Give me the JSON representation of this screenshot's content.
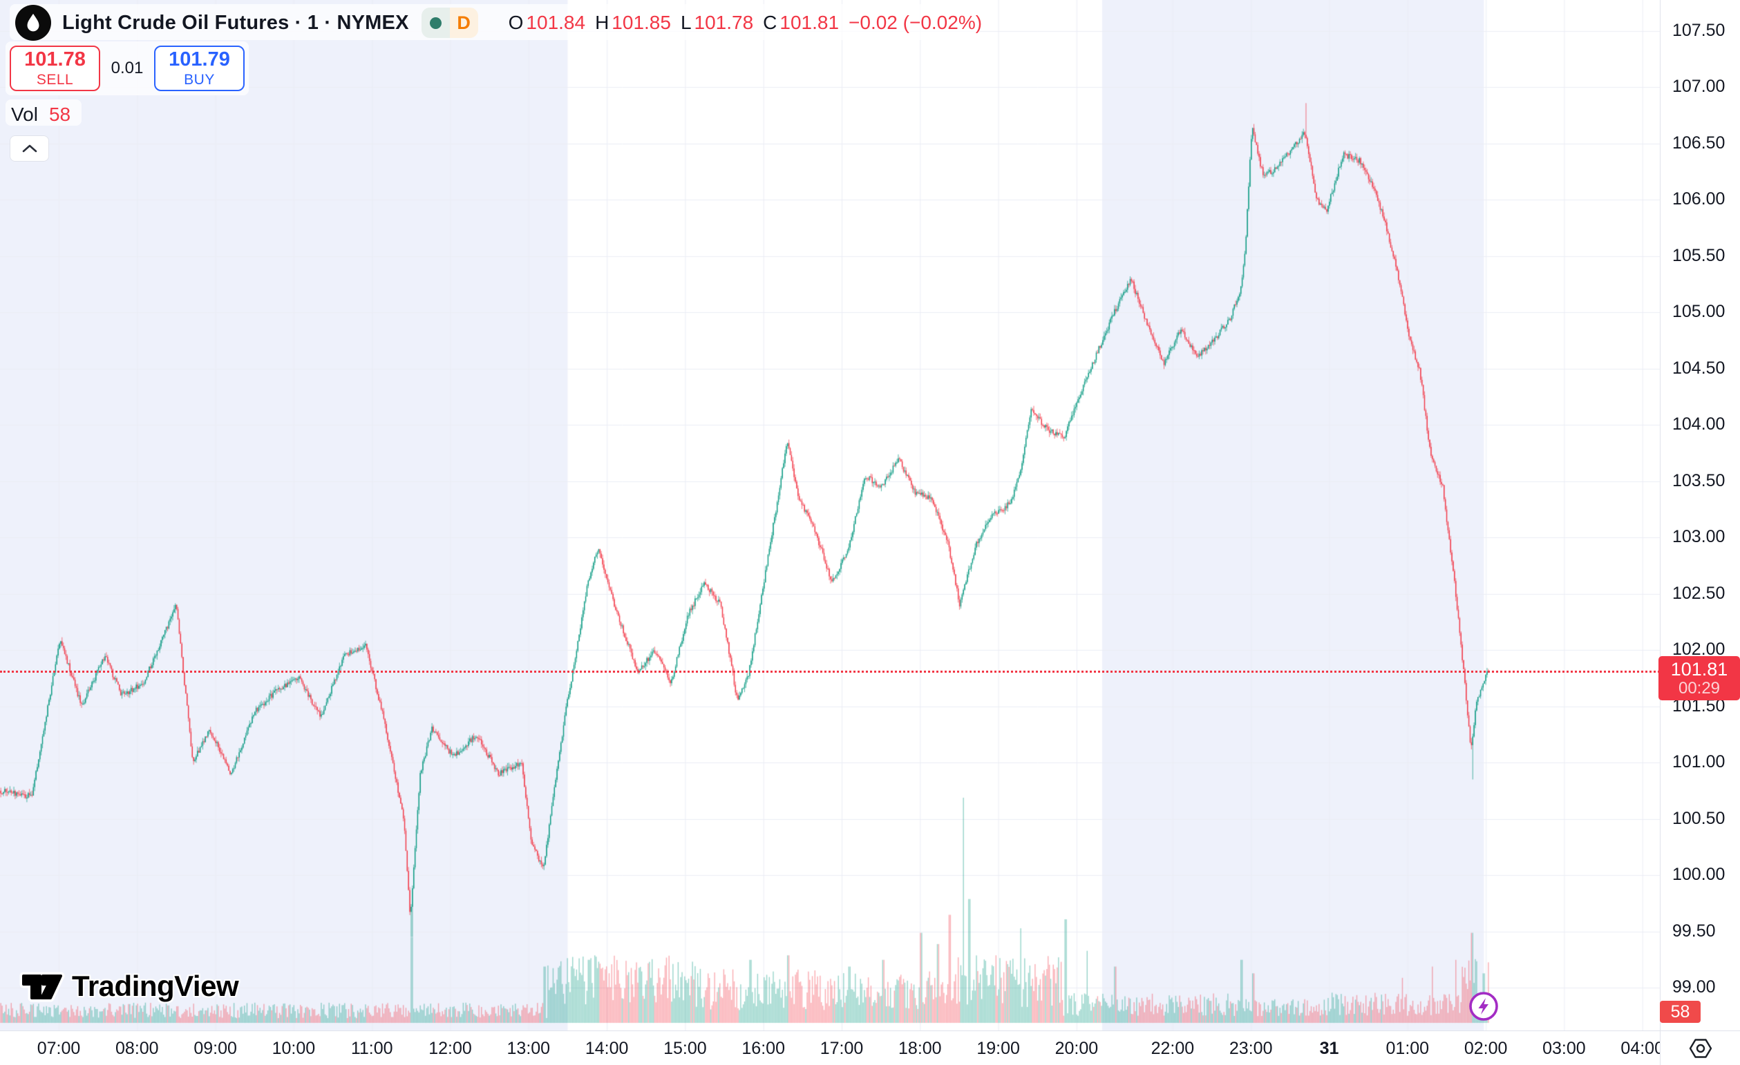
{
  "header": {
    "title": "Light Crude Oil Futures · 1 · NYMEX",
    "resolution_badge": "D",
    "market_status": "open",
    "ohlc": {
      "o_label": "O",
      "o": "101.84",
      "h_label": "H",
      "h": "101.85",
      "l_label": "L",
      "l": "101.78",
      "c_label": "C",
      "c": "101.81",
      "change": "−0.02 (−0.02%)"
    }
  },
  "trade_panel": {
    "sell_price": "101.78",
    "sell_label": "SELL",
    "spread": "0.01",
    "buy_price": "101.79",
    "buy_label": "BUY"
  },
  "volume_legend": {
    "label": "Vol",
    "value": "58"
  },
  "price_axis": {
    "ticks": [
      "107.50",
      "107.00",
      "106.50",
      "106.00",
      "105.50",
      "105.00",
      "104.50",
      "104.00",
      "103.50",
      "103.00",
      "102.50",
      "102.00",
      "101.50",
      "101.00",
      "100.50",
      "100.00",
      "99.50",
      "99.00"
    ],
    "last_price": "101.81",
    "countdown": "00:29",
    "volume_badge": "58"
  },
  "time_axis": {
    "ticks": [
      {
        "label": "07:00"
      },
      {
        "label": "08:00"
      },
      {
        "label": "09:00"
      },
      {
        "label": "10:00"
      },
      {
        "label": "11:00"
      },
      {
        "label": "12:00"
      },
      {
        "label": "13:00"
      },
      {
        "label": "14:00"
      },
      {
        "label": "15:00"
      },
      {
        "label": "16:00"
      },
      {
        "label": "17:00"
      },
      {
        "label": "18:00"
      },
      {
        "label": "19:00"
      },
      {
        "label": "20:00"
      },
      {
        "label": "22:00",
        "wide_gap_before": true
      },
      {
        "label": "23:00"
      },
      {
        "label": "31",
        "bold": true
      },
      {
        "label": "01:00"
      },
      {
        "label": "02:00"
      },
      {
        "label": "03:00"
      },
      {
        "label": "04:00"
      }
    ]
  },
  "watermark": {
    "text": "TradingView"
  },
  "chart_data": {
    "type": "candlestick",
    "symbol": "Light Crude Oil Futures (NYMEX)",
    "interval_minutes": 1,
    "price_tick_step": 0.5,
    "visible_price_range": [
      98.85,
      107.8
    ],
    "last": {
      "price": 101.81,
      "time": "02:04",
      "countdown": "00:29",
      "volume": 58
    },
    "colors": {
      "up": "#089981",
      "down": "#f23645",
      "vol_up": "rgba(8,153,129,0.42)",
      "vol_down": "rgba(242,54,69,0.42)",
      "grid": "#ebedf5",
      "session_band": "#eef1fb",
      "last_line": "#f23645",
      "buy_blue": "#2962ff",
      "flash_purple": "#a32cc4",
      "badge_orange": "#f57c00",
      "status_green": "#2f7d6b"
    },
    "sessions": [
      {
        "from_xf": 0.0,
        "to_xf": 0.342
      },
      {
        "from_xf": 0.664,
        "to_xf": 0.894
      }
    ],
    "price_path": [
      {
        "t": "06:15",
        "p": 100.75,
        "xf": 0.0
      },
      {
        "t": "06:40",
        "p": 100.7,
        "xf": 0.02
      },
      {
        "t": "07:02",
        "p": 102.1,
        "xf": 0.037
      },
      {
        "t": "07:19",
        "p": 101.5,
        "xf": 0.05
      },
      {
        "t": "07:36",
        "p": 101.95,
        "xf": 0.064
      },
      {
        "t": "07:49",
        "p": 101.6,
        "xf": 0.074
      },
      {
        "t": "08:06",
        "p": 101.7,
        "xf": 0.087
      },
      {
        "t": "08:31",
        "p": 102.4,
        "xf": 0.107
      },
      {
        "t": "08:44",
        "p": 101.0,
        "xf": 0.117
      },
      {
        "t": "08:57",
        "p": 101.3,
        "xf": 0.127
      },
      {
        "t": "09:14",
        "p": 100.9,
        "xf": 0.14
      },
      {
        "t": "09:31",
        "p": 101.45,
        "xf": 0.154
      },
      {
        "t": "09:48",
        "p": 101.65,
        "xf": 0.168
      },
      {
        "t": "10:05",
        "p": 101.75,
        "xf": 0.181
      },
      {
        "t": "10:22",
        "p": 101.4,
        "xf": 0.194
      },
      {
        "t": "10:39",
        "p": 101.95,
        "xf": 0.208
      },
      {
        "t": "10:56",
        "p": 102.05,
        "xf": 0.221
      },
      {
        "t": "11:09",
        "p": 101.45,
        "xf": 0.231
      },
      {
        "t": "11:26",
        "p": 100.5,
        "xf": 0.244
      },
      {
        "t": "11:30",
        "p": 99.6,
        "xf": 0.248
      },
      {
        "t": "11:38",
        "p": 100.9,
        "xf": 0.254
      },
      {
        "t": "11:47",
        "p": 101.3,
        "xf": 0.261
      },
      {
        "t": "12:04",
        "p": 101.05,
        "xf": 0.274
      },
      {
        "t": "12:22",
        "p": 101.25,
        "xf": 0.288
      },
      {
        "t": "12:39",
        "p": 100.9,
        "xf": 0.301
      },
      {
        "t": "12:56",
        "p": 101.0,
        "xf": 0.315
      },
      {
        "t": "13:04",
        "p": 100.3,
        "xf": 0.321
      },
      {
        "t": "13:13",
        "p": 100.05,
        "xf": 0.328
      },
      {
        "t": "13:30",
        "p": 101.4,
        "xf": 0.341
      },
      {
        "t": "13:47",
        "p": 102.6,
        "xf": 0.355
      },
      {
        "t": "13:55",
        "p": 102.9,
        "xf": 0.361
      },
      {
        "t": "14:08",
        "p": 102.4,
        "xf": 0.371
      },
      {
        "t": "14:25",
        "p": 101.8,
        "xf": 0.385
      },
      {
        "t": "14:38",
        "p": 102.0,
        "xf": 0.395
      },
      {
        "t": "14:51",
        "p": 101.7,
        "xf": 0.405
      },
      {
        "t": "15:04",
        "p": 102.3,
        "xf": 0.415
      },
      {
        "t": "15:16",
        "p": 102.6,
        "xf": 0.425
      },
      {
        "t": "15:29",
        "p": 102.4,
        "xf": 0.435
      },
      {
        "t": "15:42",
        "p": 101.55,
        "xf": 0.445
      },
      {
        "t": "15:50",
        "p": 101.8,
        "xf": 0.452
      },
      {
        "t": "16:15",
        "p": 103.85,
        "xf": 0.475
      },
      {
        "t": "16:23",
        "p": 103.35,
        "xf": 0.482
      },
      {
        "t": "16:36",
        "p": 103.05,
        "xf": 0.492
      },
      {
        "t": "16:49",
        "p": 102.6,
        "xf": 0.502
      },
      {
        "t": "17:02",
        "p": 102.9,
        "xf": 0.512
      },
      {
        "t": "17:15",
        "p": 103.55,
        "xf": 0.522
      },
      {
        "t": "17:28",
        "p": 103.45,
        "xf": 0.532
      },
      {
        "t": "17:40",
        "p": 103.7,
        "xf": 0.542
      },
      {
        "t": "17:53",
        "p": 103.4,
        "xf": 0.552
      },
      {
        "t": "18:06",
        "p": 103.35,
        "xf": 0.562
      },
      {
        "t": "18:19",
        "p": 102.95,
        "xf": 0.572
      },
      {
        "t": "18:27",
        "p": 102.4,
        "xf": 0.579
      },
      {
        "t": "18:40",
        "p": 102.95,
        "xf": 0.589
      },
      {
        "t": "18:53",
        "p": 103.2,
        "xf": 0.599
      },
      {
        "t": "19:06",
        "p": 103.3,
        "xf": 0.609
      },
      {
        "t": "19:14",
        "p": 103.55,
        "xf": 0.615
      },
      {
        "t": "19:23",
        "p": 104.15,
        "xf": 0.622
      },
      {
        "t": "19:36",
        "p": 103.95,
        "xf": 0.632
      },
      {
        "t": "19:49",
        "p": 103.9,
        "xf": 0.642
      },
      {
        "t": "20:10",
        "p": 104.3,
        "xf": 0.652
      },
      {
        "t": "20:31",
        "p": 104.65,
        "xf": 0.662
      },
      {
        "t": "20:52",
        "p": 105.0,
        "xf": 0.672
      },
      {
        "t": "21:13",
        "p": 105.3,
        "xf": 0.682
      },
      {
        "t": "21:33",
        "p": 104.9,
        "xf": 0.692
      },
      {
        "t": "21:54",
        "p": 104.55,
        "xf": 0.702
      },
      {
        "t": "22:09",
        "p": 104.85,
        "xf": 0.712
      },
      {
        "t": "22:22",
        "p": 104.6,
        "xf": 0.722
      },
      {
        "t": "22:35",
        "p": 104.75,
        "xf": 0.732
      },
      {
        "t": "22:47",
        "p": 104.95,
        "xf": 0.742
      },
      {
        "t": "23:00",
        "p": 105.2,
        "xf": 0.748
      },
      {
        "t": "23:02",
        "p": 105.55,
        "xf": 0.751
      },
      {
        "t": "23:05",
        "p": 106.65,
        "xf": 0.755
      },
      {
        "t": "23:13",
        "p": 106.2,
        "xf": 0.762
      },
      {
        "t": "23:23",
        "p": 106.3,
        "xf": 0.771
      },
      {
        "t": "23:34",
        "p": 106.45,
        "xf": 0.779
      },
      {
        "t": "23:45",
        "p": 106.6,
        "xf": 0.787
      },
      {
        "t": "23:52",
        "p": 106.0,
        "xf": 0.794
      },
      {
        "t": "00:00",
        "p": 105.9,
        "xf": 0.8
      },
      {
        "t": "00:13",
        "p": 106.4,
        "xf": 0.81
      },
      {
        "t": "00:26",
        "p": 106.35,
        "xf": 0.82
      },
      {
        "t": "00:37",
        "p": 106.1,
        "xf": 0.829
      },
      {
        "t": "00:47",
        "p": 105.7,
        "xf": 0.837
      },
      {
        "t": "00:57",
        "p": 105.2,
        "xf": 0.845
      },
      {
        "t": "01:04",
        "p": 104.75,
        "xf": 0.85
      },
      {
        "t": "01:12",
        "p": 104.5,
        "xf": 0.856
      },
      {
        "t": "01:21",
        "p": 103.7,
        "xf": 0.863
      },
      {
        "t": "01:30",
        "p": 103.45,
        "xf": 0.87
      },
      {
        "t": "01:38",
        "p": 102.6,
        "xf": 0.877
      },
      {
        "t": "01:45",
        "p": 101.9,
        "xf": 0.882
      },
      {
        "t": "01:51",
        "p": 101.1,
        "xf": 0.887
      },
      {
        "t": "01:55",
        "p": 101.5,
        "xf": 0.89
      },
      {
        "t": "02:00",
        "p": 101.7,
        "xf": 0.894
      },
      {
        "t": "02:04",
        "p": 101.81,
        "xf": 0.897
      }
    ],
    "extremes": [
      {
        "t": "11:30",
        "xf": 0.248,
        "side": "low",
        "p": 99.45
      },
      {
        "t": "16:15",
        "xf": 0.475,
        "side": "high",
        "p": 103.87
      },
      {
        "t": "23:45",
        "xf": 0.787,
        "side": "high",
        "p": 106.86
      },
      {
        "t": "01:51",
        "xf": 0.887,
        "side": "low",
        "p": 100.85
      }
    ],
    "volume_profile": [
      {
        "from": 0.0,
        "to": 0.33,
        "base": 0.06
      },
      {
        "from": 0.33,
        "to": 0.42,
        "base": 0.2
      },
      {
        "from": 0.42,
        "to": 0.57,
        "base": 0.16
      },
      {
        "from": 0.57,
        "to": 0.64,
        "base": 0.2
      },
      {
        "from": 0.64,
        "to": 0.74,
        "base": 0.09
      },
      {
        "from": 0.74,
        "to": 0.8,
        "base": 0.07
      },
      {
        "from": 0.8,
        "to": 0.88,
        "base": 0.09
      },
      {
        "from": 0.88,
        "to": 0.9,
        "base": 0.2
      }
    ],
    "volume_spikes": [
      {
        "xf": 0.248,
        "h": 0.38
      },
      {
        "xf": 0.328,
        "h": 0.25
      },
      {
        "xf": 0.355,
        "h": 0.28
      },
      {
        "xf": 0.452,
        "h": 0.28
      },
      {
        "xf": 0.475,
        "h": 0.3
      },
      {
        "xf": 0.512,
        "h": 0.25
      },
      {
        "xf": 0.532,
        "h": 0.28
      },
      {
        "xf": 0.555,
        "h": 0.4
      },
      {
        "xf": 0.565,
        "h": 0.35
      },
      {
        "xf": 0.572,
        "h": 0.48
      },
      {
        "xf": 0.5805,
        "h": 1.0
      },
      {
        "xf": 0.584,
        "h": 0.55
      },
      {
        "xf": 0.6,
        "h": 0.3
      },
      {
        "xf": 0.615,
        "h": 0.42
      },
      {
        "xf": 0.642,
        "h": 0.46
      },
      {
        "xf": 0.655,
        "h": 0.32
      },
      {
        "xf": 0.672,
        "h": 0.25
      },
      {
        "xf": 0.748,
        "h": 0.28
      },
      {
        "xf": 0.755,
        "h": 0.22
      },
      {
        "xf": 0.845,
        "h": 0.2
      },
      {
        "xf": 0.863,
        "h": 0.25
      },
      {
        "xf": 0.877,
        "h": 0.28
      },
      {
        "xf": 0.887,
        "h": 0.4
      },
      {
        "xf": 0.894,
        "h": 0.22
      }
    ]
  }
}
